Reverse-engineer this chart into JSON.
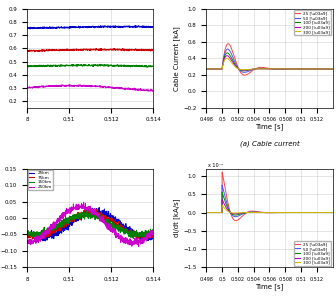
{
  "top_left": {
    "lines": [
      {
        "label": "25km",
        "color": "#0000cd",
        "y_base": 0.76,
        "amplitude": 0.006,
        "freq": 100,
        "phase": 0.0
      },
      {
        "label": "75km",
        "color": "#cc0000",
        "y_base": 0.585,
        "amplitude": 0.006,
        "freq": 100,
        "phase": 0.5
      },
      {
        "label": "150km",
        "color": "#008000",
        "y_base": 0.465,
        "amplitude": 0.006,
        "freq": 100,
        "phase": 1.0
      },
      {
        "label": "250km",
        "color": "#cc00cc",
        "y_base": 0.295,
        "amplitude": 0.022,
        "freq": 100,
        "phase": 1.5
      }
    ],
    "xlim": [
      0.508,
      0.514
    ],
    "ylim": [
      0.15,
      0.9
    ],
    "xticks": [
      0.508,
      0.51,
      0.512,
      0.514
    ],
    "xticklabels": [
      "8",
      "0.51",
      "0.512",
      "0.514"
    ]
  },
  "top_right": {
    "legend_labels": [
      "25 [\\u03a9]",
      "50 [\\u03a9]",
      "100 [\\u03a9]",
      "200 [\\u03a9]",
      "300 [\\u03a9]"
    ],
    "legend_colors": [
      "#ff4444",
      "#5555ff",
      "#008800",
      "#bb00bb",
      "#ccbb00"
    ],
    "xlim": [
      0.498,
      0.514
    ],
    "ylim": [
      -0.2,
      1.0
    ],
    "xlabel": "Time [s]",
    "ylabel": "Cable Current [kA]",
    "caption": "(a) Cable current",
    "xticks": [
      0.498,
      0.5,
      0.502,
      0.504,
      0.506,
      0.508,
      0.51,
      0.512
    ],
    "yticks": [
      -0.2,
      0.0,
      0.2,
      0.4,
      0.6,
      0.8,
      1.0
    ],
    "fault_time": 0.5,
    "pre_fault": 0.27,
    "settle": 0.27,
    "peaks": [
      0.56,
      0.5,
      0.45,
      0.4,
      0.35
    ],
    "taus": [
      0.0015,
      0.0012,
      0.001,
      0.0009,
      0.0008
    ],
    "omega": 1500
  },
  "bottom_left": {
    "lines": [
      {
        "label": "25km",
        "color": "#0000cd",
        "y_base": -0.02,
        "amplitude": 0.04,
        "freq": 200,
        "phase": 0.0
      },
      {
        "label": "75km",
        "color": "#cc0000",
        "y_base": -0.02,
        "amplitude": 0.035,
        "freq": 200,
        "phase": 0.3
      },
      {
        "label": "150km",
        "color": "#008000",
        "y_base": -0.02,
        "amplitude": 0.03,
        "freq": 200,
        "phase": 0.6
      },
      {
        "label": "250km",
        "color": "#cc00cc",
        "y_base": -0.02,
        "amplitude": 0.055,
        "freq": 200,
        "phase": 0.9
      }
    ],
    "xlim": [
      0.508,
      0.514
    ],
    "ylim": [
      -0.15,
      0.15
    ],
    "xticks": [
      0.508,
      0.51,
      0.512,
      0.514
    ],
    "xticklabels": [
      "8",
      "0.51",
      "0.512",
      "0.514"
    ]
  },
  "bottom_right": {
    "legend_labels": [
      "25 [\\u03a9]",
      "50 [\\u03a9]",
      "100 [\\u03a9]",
      "200 [\\u03a9]",
      "300 [\\u03a9]"
    ],
    "legend_colors": [
      "#ff4444",
      "#5555ff",
      "#008800",
      "#bb00bb",
      "#ccbb00"
    ],
    "xlim": [
      0.498,
      0.514
    ],
    "ylim": [
      -1.5,
      1.2
    ],
    "xlabel": "Time [s]",
    "ylabel": "di/dt [kA/s]",
    "xticks": [
      0.498,
      0.5,
      0.502,
      0.504,
      0.506,
      0.508,
      0.51,
      0.512
    ],
    "yticks": [
      -1.5,
      -1.0,
      -0.5,
      0.0,
      0.5,
      1.0
    ],
    "fault_time": 0.5,
    "settle": 0.0,
    "peaks": [
      1.1,
      0.75,
      0.55,
      0.35,
      0.2
    ],
    "taus": [
      0.0012,
      0.001,
      0.0009,
      0.0008,
      0.0007
    ],
    "omega": 1500,
    "scale_label": "x 10⁻²"
  },
  "background_color": "#ffffff",
  "grid_color": "#d0d0d0"
}
